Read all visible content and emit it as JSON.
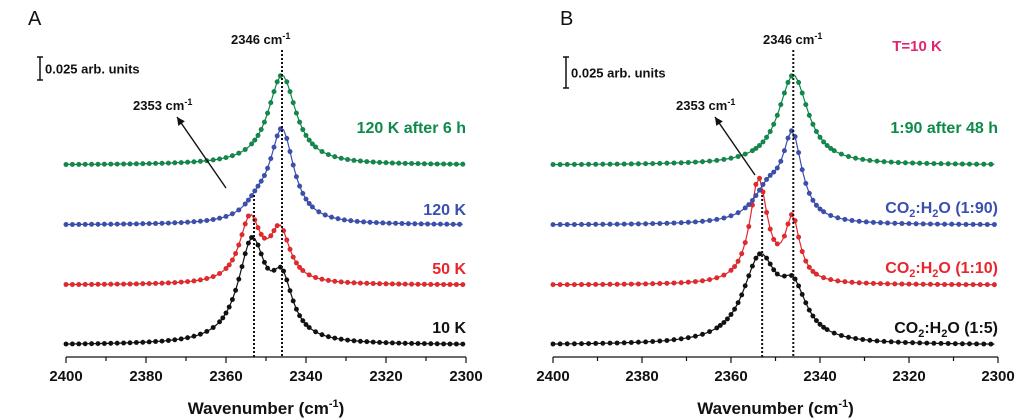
{
  "chart_data": [
    {
      "panel": "A",
      "type": "line",
      "title": "",
      "xlabel": "Wavenumber (cm-1)",
      "xlabel_main": "Wavenumber (cm",
      "xlabel_sup": "-1",
      "xlabel_close": ")",
      "ylabel": "",
      "xlim": [
        2400,
        2300
      ],
      "xticks": [
        "2400",
        "2380",
        "2360",
        "2340",
        "2320",
        "2300"
      ],
      "xtick_values": [
        2400,
        2380,
        2360,
        2340,
        2320,
        2300
      ],
      "grid": false,
      "scale_bar": "0.025 arb. units",
      "scale_bar_value": 0.025,
      "annotations": [
        {
          "text": "2346 cm",
          "sup": "-1",
          "x": 2346
        },
        {
          "text": "2353 cm",
          "sup": "-1",
          "x": 2353
        }
      ],
      "series": [
        {
          "name": "10 K",
          "color": "#111111",
          "offset": 0.0,
          "peaks": [
            {
              "x": 2353.5,
              "amp": 0.0415,
              "w": 4.2
            },
            {
              "x": 2346,
              "amp": 0.022,
              "w": 3.2
            }
          ]
        },
        {
          "name": "50 K",
          "color": "#e8262b",
          "offset": 0.025,
          "peaks": [
            {
              "x": 2354,
              "amp": 0.0265,
              "w": 3.2
            },
            {
              "x": 2346.5,
              "amp": 0.021,
              "w": 3.0
            }
          ]
        },
        {
          "name": "120 K",
          "color": "#3a4fb0",
          "offset": 0.05,
          "peaks": [
            {
              "x": 2346,
              "amp": 0.0385,
              "w": 3.6
            },
            {
              "x": 2352,
              "amp": 0.006,
              "w": 4.0
            }
          ]
        },
        {
          "name": "120 K after 6 h",
          "color": "#0e8a4a",
          "offset": 0.075,
          "peaks": [
            {
              "x": 2346,
              "amp": 0.0375,
              "w": 4.2
            }
          ]
        }
      ]
    },
    {
      "panel": "B",
      "type": "line",
      "title": "T=10 K",
      "title_color": "#e0266e",
      "xlabel": "Wavenumber (cm-1)",
      "xlabel_main": "Wavenumber (cm",
      "xlabel_sup": "-1",
      "xlabel_close": ")",
      "ylabel": "",
      "xlim": [
        2400,
        2300
      ],
      "xticks": [
        "2400",
        "2380",
        "2360",
        "2340",
        "2320",
        "2300"
      ],
      "xtick_values": [
        2400,
        2380,
        2360,
        2340,
        2320,
        2300
      ],
      "grid": false,
      "scale_bar": "0.025 arb. units",
      "scale_bar_value": 0.025,
      "annotations": [
        {
          "text": "2346 cm",
          "sup": "-1",
          "x": 2346
        },
        {
          "text": "2353 cm",
          "sup": "-1",
          "x": 2353
        }
      ],
      "series": [
        {
          "name": "CO2:H2O (1:5)",
          "label_parts": [
            "CO",
            "2",
            ":H",
            "2",
            "O (1:5)"
          ],
          "color": "#111111",
          "offset": 0.0,
          "peaks": [
            {
              "x": 2353.5,
              "amp": 0.0345,
              "w": 4.6
            },
            {
              "x": 2346,
              "amp": 0.019,
              "w": 3.6
            }
          ]
        },
        {
          "name": "CO2:H2O (1:10)",
          "label_parts": [
            "CO",
            "2",
            ":H",
            "2",
            "O (1:10)"
          ],
          "color": "#e8262b",
          "offset": 0.025,
          "peaks": [
            {
              "x": 2353.8,
              "amp": 0.043,
              "w": 2.4
            },
            {
              "x": 2346.2,
              "amp": 0.0255,
              "w": 2.0
            }
          ]
        },
        {
          "name": "CO2:H2O (1:90)",
          "label_parts": [
            "CO",
            "2",
            ":H",
            "2",
            "O (1:90)"
          ],
          "color": "#3a4fb0",
          "offset": 0.05,
          "peaks": [
            {
              "x": 2346.2,
              "amp": 0.034,
              "w": 2.6
            },
            {
              "x": 2351.5,
              "amp": 0.0135,
              "w": 4.2
            }
          ]
        },
        {
          "name": "1:90 after 48 h",
          "label_parts": [
            "1:90 after 48 h"
          ],
          "color": "#0e8a4a",
          "offset": 0.075,
          "peaks": [
            {
              "x": 2346,
              "amp": 0.0375,
              "w": 4.0
            }
          ]
        }
      ]
    }
  ]
}
